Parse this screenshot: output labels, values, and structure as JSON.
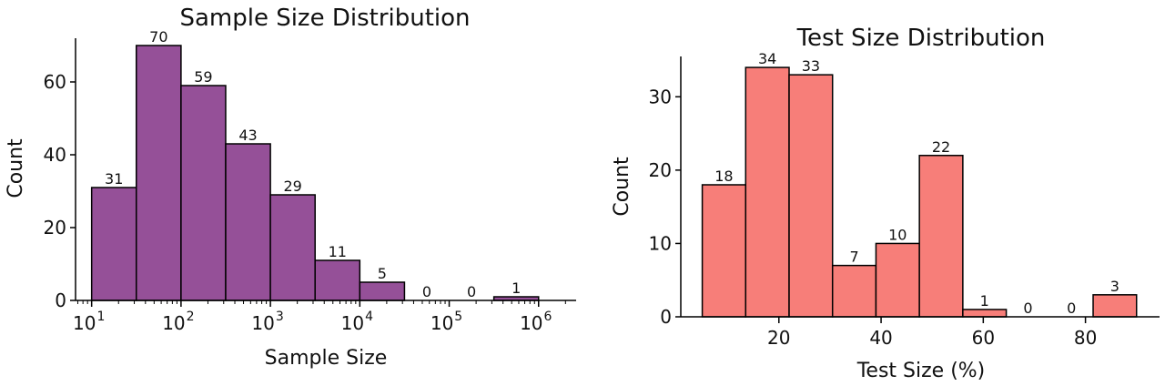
{
  "chart_data": [
    {
      "type": "bar",
      "title": "Sample Size Distribution",
      "xlabel": "Sample Size",
      "ylabel": "Count",
      "x_scale": "log",
      "x_ticks": [
        {
          "base": "10",
          "exp": "1"
        },
        {
          "base": "10",
          "exp": "2"
        },
        {
          "base": "10",
          "exp": "3"
        },
        {
          "base": "10",
          "exp": "4"
        },
        {
          "base": "10",
          "exp": "5"
        },
        {
          "base": "10",
          "exp": "6"
        }
      ],
      "y_ticks": [
        "0",
        "20",
        "40",
        "60"
      ],
      "ylim": [
        0,
        72
      ],
      "bin_edges": [
        10,
        31.6,
        100,
        316,
        1000,
        3162,
        10000,
        31623,
        100000,
        316228,
        1000000
      ],
      "values": [
        31,
        70,
        59,
        43,
        29,
        11,
        5,
        0,
        0,
        1
      ],
      "color": "#955098",
      "grid": false
    },
    {
      "type": "bar",
      "title": "Test Size Distribution",
      "xlabel": "Test Size (%)",
      "ylabel": "Count",
      "x_scale": "linear",
      "x_ticks": [
        "20",
        "40",
        "60",
        "80"
      ],
      "y_ticks": [
        "0",
        "10",
        "20",
        "30"
      ],
      "ylim": [
        0,
        35.5
      ],
      "bin_edges": [
        5,
        13.5,
        22,
        30.5,
        39,
        47.5,
        56,
        64.5,
        73,
        81.5,
        90
      ],
      "values": [
        18,
        34,
        33,
        7,
        10,
        22,
        1,
        0,
        0,
        3
      ],
      "color": "#f77e79",
      "grid": false
    }
  ]
}
